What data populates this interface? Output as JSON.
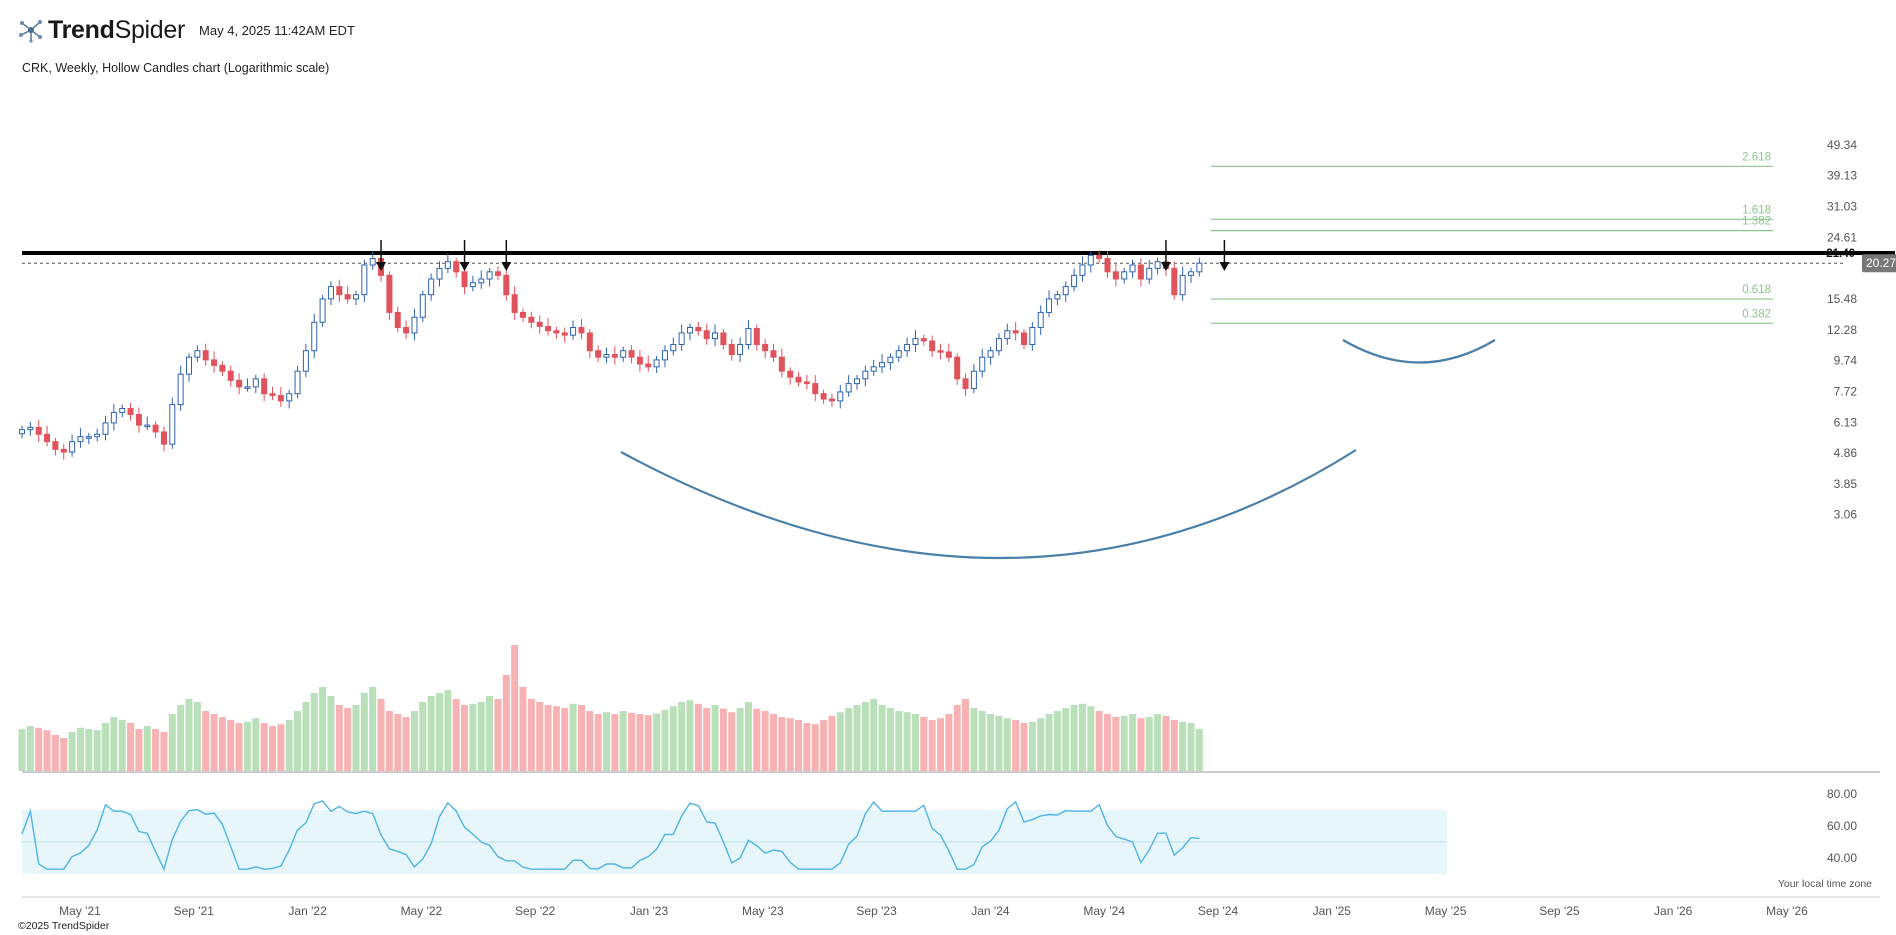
{
  "header": {
    "brand_bold": "Trend",
    "brand_light": "Spider",
    "date": "May 4, 2025 11:42AM EDT",
    "subtitle": "CRK, Weekly, Hollow Candles chart (Logarithmic scale)"
  },
  "footer": {
    "copyright": "©2025 TrendSpider",
    "timezone": "Your local time zone"
  },
  "colors": {
    "up": "#2f63b0",
    "down": "#e0535c",
    "volume_up": "#b9e0b9",
    "volume_down": "#f7b3b3",
    "rsi_line": "#4fb4e4",
    "rsi_band": "#e6f6fa",
    "arc": "#4a7fa8",
    "fib": "#8cc58c",
    "resistance": "#000000",
    "price_tag": "#777777"
  },
  "chart_data": {
    "type": "candlestick",
    "scale": "log",
    "price_axis_ticks": [
      "49.34",
      "39.13",
      "31.03",
      "24.61",
      "15.48",
      "12.28",
      "9.74",
      "7.72",
      "6.13",
      "4.86",
      "3.85",
      "3.06"
    ],
    "time_axis_ticks": [
      "May '21",
      "Sep '21",
      "Jan '22",
      "May '22",
      "Sep '22",
      "Jan '23",
      "May '23",
      "Sep '23",
      "Jan '24",
      "May '24",
      "Sep '24",
      "Jan '25",
      "May '25",
      "Sep '25",
      "Jan '26",
      "May '26"
    ],
    "resistance_level": 21.4,
    "resistance_label": "21.40",
    "last_price": 20.27,
    "last_price_label": "20.27",
    "fib_levels": [
      {
        "label": "2.618",
        "price": 42.0
      },
      {
        "label": "1.618",
        "price": 28.2
      },
      {
        "label": "1.382",
        "price": 25.9
      },
      {
        "label": "0.618",
        "price": 15.48
      },
      {
        "label": "0.382",
        "price": 12.9
      }
    ],
    "resistance_touch_arrows": [
      "Jun '22",
      "Sep '22",
      "Nov '22",
      "Jan '25",
      "Mar '25"
    ],
    "rsi_axis_ticks": [
      "80.00",
      "60.00",
      "40.00"
    ],
    "rsi_band": [
      30,
      70
    ],
    "closes": [
      5.8,
      5.9,
      5.6,
      5.3,
      5.0,
      4.9,
      5.3,
      5.5,
      5.5,
      5.6,
      6.1,
      6.6,
      6.8,
      6.5,
      6.0,
      6.0,
      5.7,
      5.2,
      7.0,
      8.8,
      10.0,
      10.5,
      9.8,
      9.4,
      9.0,
      8.4,
      8.0,
      8.0,
      8.5,
      7.6,
      7.5,
      7.2,
      7.6,
      9.0,
      10.5,
      13.0,
      15.5,
      17.0,
      16.0,
      15.5,
      16.0,
      20.0,
      21.0,
      18.5,
      14.0,
      12.5,
      12.0,
      13.5,
      16.0,
      18.0,
      19.5,
      20.5,
      19.0,
      17.0,
      17.5,
      18.0,
      19.0,
      18.5,
      16.0,
      14.0,
      13.5,
      13.0,
      12.6,
      12.2,
      12.0,
      11.8,
      12.5,
      12.0,
      10.5,
      10.0,
      10.2,
      10.0,
      10.5,
      10.0,
      9.5,
      9.3,
      9.8,
      10.5,
      11.0,
      12.0,
      12.5,
      12.2,
      11.5,
      12.0,
      11.0,
      10.2,
      11.0,
      12.4,
      11.0,
      10.5,
      10.0,
      9.0,
      8.6,
      8.3,
      8.2,
      7.6,
      7.3,
      7.2,
      7.7,
      8.2,
      8.5,
      9.0,
      9.3,
      9.6,
      10.0,
      10.5,
      11.0,
      11.5,
      11.3,
      10.5,
      10.4,
      10.0,
      8.5,
      7.9,
      9.0,
      10.0,
      10.5,
      11.5,
      12.2,
      12.0,
      11.0,
      12.5,
      14.0,
      15.5,
      16.0,
      17.0,
      18.5,
      20.0,
      21.5,
      21.0,
      19.0,
      18.0,
      19.0,
      20.0,
      18.0,
      19.5,
      20.5,
      19.5,
      16.0,
      18.5,
      19.0,
      20.27
    ],
    "volumes": [
      70,
      75,
      72,
      68,
      60,
      55,
      65,
      72,
      70,
      68,
      80,
      90,
      85,
      80,
      70,
      75,
      70,
      65,
      95,
      110,
      120,
      115,
      100,
      95,
      90,
      85,
      80,
      82,
      88,
      80,
      75,
      78,
      85,
      100,
      115,
      130,
      140,
      125,
      110,
      105,
      110,
      130,
      140,
      120,
      100,
      95,
      90,
      100,
      115,
      125,
      130,
      135,
      120,
      110,
      112,
      115,
      125,
      120,
      160,
      210,
      140,
      120,
      115,
      110,
      108,
      105,
      112,
      110,
      100,
      95,
      98,
      95,
      100,
      97,
      95,
      93,
      96,
      102,
      108,
      115,
      118,
      112,
      105,
      110,
      104,
      98,
      105,
      115,
      104,
      100,
      95,
      90,
      88,
      85,
      80,
      78,
      85,
      92,
      98,
      105,
      110,
      115,
      120,
      110,
      105,
      100,
      98,
      95,
      90,
      85,
      88,
      95,
      110,
      120,
      105,
      100,
      95,
      92,
      88,
      85,
      80,
      82,
      88,
      95,
      100,
      105,
      110,
      112,
      108,
      100,
      95,
      90,
      92,
      95,
      88,
      90,
      95,
      92,
      85,
      82,
      80,
      70
    ]
  }
}
